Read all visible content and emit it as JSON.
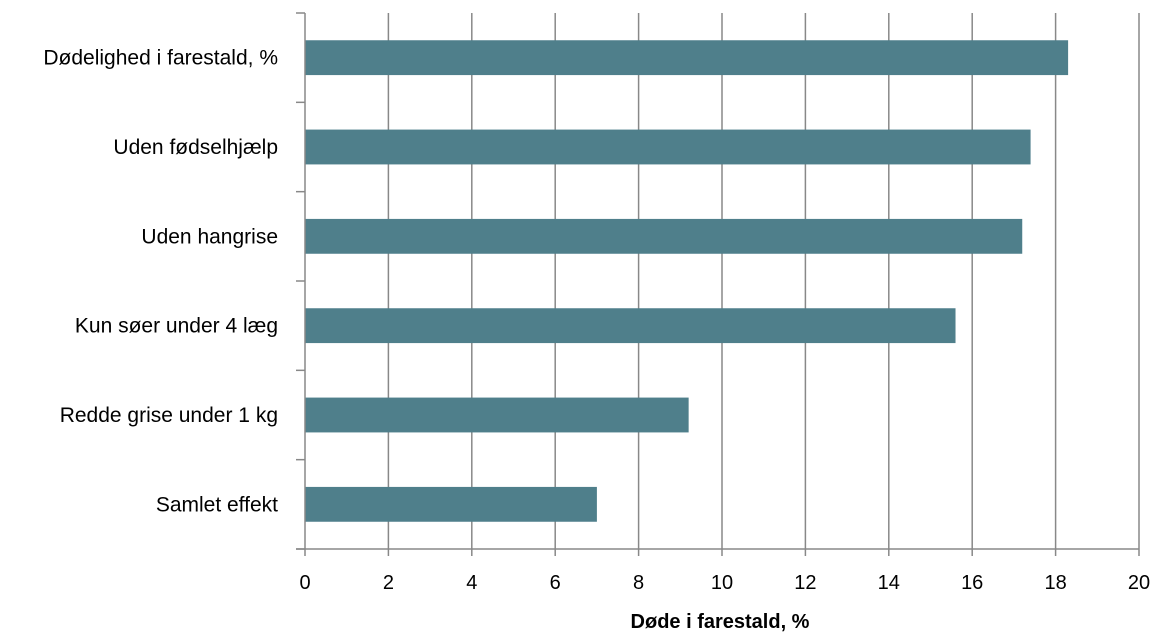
{
  "chart_data": {
    "type": "bar",
    "orientation": "horizontal",
    "categories": [
      "Dødelighed i farestald, %",
      "Uden fødselhjælp",
      "Uden hangrise",
      "Kun søer under 4 læg",
      "Redde grise under  1 kg",
      "Samlet effekt"
    ],
    "values": [
      18.3,
      17.4,
      17.2,
      15.6,
      9.2,
      7.0
    ],
    "xlabel": "Døde i farestald, %",
    "ylabel": "",
    "xlim": [
      0,
      20
    ],
    "xticks": [
      "0",
      "2",
      "4",
      "6",
      "8",
      "10",
      "12",
      "14",
      "16",
      "18",
      "20"
    ],
    "grid": "vertical",
    "legend": "none",
    "bar_color": "#4f7f8b",
    "grid_color": "#888888",
    "axis_color": "#888888"
  }
}
